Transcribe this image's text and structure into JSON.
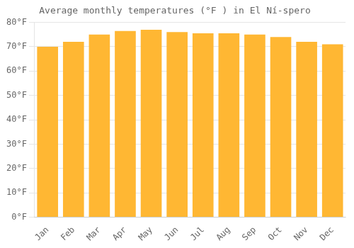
{
  "chart_data": {
    "type": "bar",
    "title": "Average monthly temperatures (°F ) in El Ní-spero",
    "categories": [
      "Jan",
      "Feb",
      "Mar",
      "Apr",
      "May",
      "Jun",
      "Jul",
      "Aug",
      "Sep",
      "Oct",
      "Nov",
      "Dec"
    ],
    "values": [
      70,
      72,
      75,
      76.5,
      77,
      76,
      75.5,
      75.5,
      75,
      74,
      72,
      71
    ],
    "color": "#FFB733",
    "ylim": [
      0,
      80
    ],
    "yticks": [
      {
        "value": 0,
        "label": "0°F"
      },
      {
        "value": 10,
        "label": "10°F"
      },
      {
        "value": 20,
        "label": "20°F"
      },
      {
        "value": 30,
        "label": "30°F"
      },
      {
        "value": 40,
        "label": "40°F"
      },
      {
        "value": 50,
        "label": "50°F"
      },
      {
        "value": 60,
        "label": "60°F"
      },
      {
        "value": 70,
        "label": "70°F"
      },
      {
        "value": 80,
        "label": "80°F"
      }
    ],
    "grid": true
  }
}
